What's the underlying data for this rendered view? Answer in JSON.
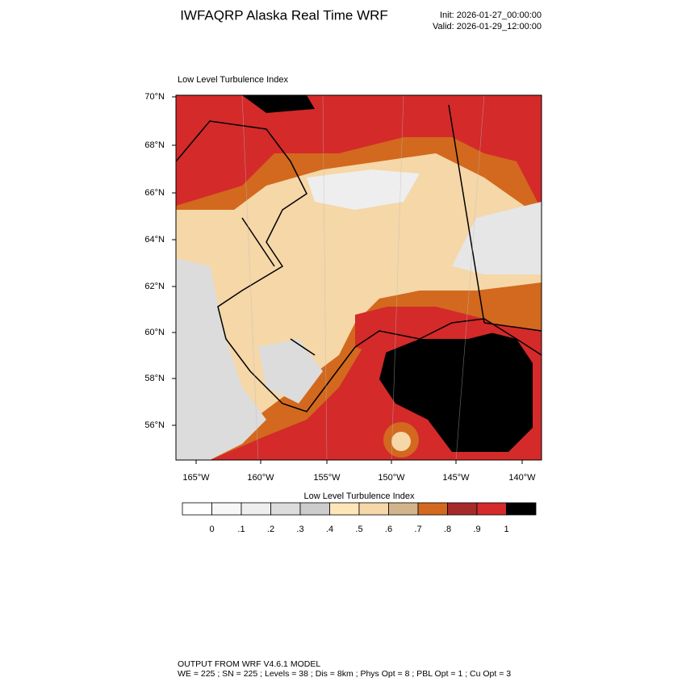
{
  "header": {
    "title": "IWFAQRP Alaska Real Time WRF",
    "init": "Init: 2026-01-27_00:00:00",
    "valid": "Valid: 2026-01-29_12:00:00"
  },
  "map": {
    "title": "Low Level Turbulence Index",
    "lat_labels": [
      "70°N",
      "68°N",
      "66°N",
      "64°N",
      "62°N",
      "60°N",
      "58°N",
      "56°N"
    ],
    "lon_labels": [
      "165°W",
      "160°W",
      "155°W",
      "150°W",
      "145°W",
      "140°W"
    ]
  },
  "colorbar": {
    "title": "Low Level Turbulence Index",
    "labels": [
      "0",
      ".1",
      ".2",
      ".3",
      ".4",
      ".5",
      ".6",
      ".7",
      ".8",
      ".9",
      "1"
    ],
    "colors": [
      "#ffffff",
      "#f7f7f7",
      "#eeeeee",
      "#dcdcdc",
      "#cccccc",
      "#ffe6b8",
      "#f5d7a8",
      "#d2b48c",
      "#d2691e",
      "#a52a2a",
      "#d42a2a",
      "#000000"
    ]
  },
  "footer": {
    "line1": "OUTPUT FROM WRF V4.6.1 MODEL",
    "line2": "WE = 225 ; SN = 225 ; Levels = 38 ; Dis = 8km ; Phys Opt = 8 ; PBL Opt = 1 ; Cu Opt = 3"
  }
}
